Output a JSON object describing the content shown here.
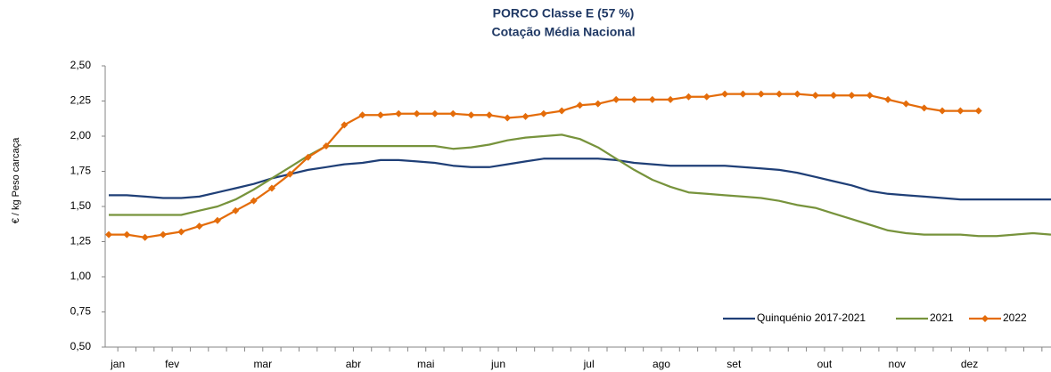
{
  "chart_data": {
    "type": "line",
    "title": "PORCO Classe E (57 %)",
    "subtitle": "Cotação Média Nacional",
    "y_label": "€ / kg Peso carcaça",
    "categories": [
      "jan",
      null,
      null,
      "fev",
      null,
      null,
      null,
      null,
      "mar",
      null,
      null,
      null,
      null,
      "abr",
      null,
      null,
      null,
      "mai",
      null,
      null,
      null,
      "jun",
      null,
      null,
      null,
      null,
      "jul",
      null,
      null,
      null,
      "ago",
      null,
      null,
      null,
      "set",
      null,
      null,
      null,
      null,
      "out",
      null,
      null,
      null,
      "nov",
      null,
      null,
      null,
      "dez",
      null,
      null,
      null,
      null,
      null
    ],
    "series": [
      {
        "name": "Quinquénio 2017-2021",
        "color": "#1f3f77",
        "marker": false,
        "values": [
          1.58,
          1.58,
          1.57,
          1.56,
          1.56,
          1.57,
          1.6,
          1.63,
          1.66,
          1.7,
          1.73,
          1.76,
          1.78,
          1.8,
          1.81,
          1.83,
          1.83,
          1.82,
          1.81,
          1.79,
          1.78,
          1.78,
          1.8,
          1.82,
          1.84,
          1.84,
          1.84,
          1.84,
          1.83,
          1.81,
          1.8,
          1.79,
          1.79,
          1.79,
          1.79,
          1.78,
          1.77,
          1.76,
          1.74,
          1.71,
          1.68,
          1.65,
          1.61,
          1.59,
          1.58,
          1.57,
          1.56,
          1.55,
          1.55,
          1.55,
          1.55,
          1.55,
          1.55
        ]
      },
      {
        "name": "2021",
        "color": "#77933c",
        "marker": false,
        "values": [
          1.44,
          1.44,
          1.44,
          1.44,
          1.44,
          1.47,
          1.5,
          1.55,
          1.62,
          1.7,
          1.78,
          1.86,
          1.93,
          1.93,
          1.93,
          1.93,
          1.93,
          1.93,
          1.93,
          1.91,
          1.92,
          1.94,
          1.97,
          1.99,
          2.0,
          2.01,
          1.98,
          1.92,
          1.84,
          1.76,
          1.69,
          1.64,
          1.6,
          1.59,
          1.58,
          1.57,
          1.56,
          1.54,
          1.51,
          1.49,
          1.45,
          1.41,
          1.37,
          1.33,
          1.31,
          1.3,
          1.3,
          1.3,
          1.29,
          1.29,
          1.3,
          1.31,
          1.3
        ]
      },
      {
        "name": "2022",
        "color": "#e46c0a",
        "marker": true,
        "values": [
          1.3,
          1.3,
          1.28,
          1.3,
          1.32,
          1.36,
          1.4,
          1.47,
          1.54,
          1.63,
          1.73,
          1.85,
          1.93,
          2.08,
          2.15,
          2.15,
          2.16,
          2.16,
          2.16,
          2.16,
          2.15,
          2.15,
          2.13,
          2.14,
          2.16,
          2.18,
          2.22,
          2.23,
          2.26,
          2.26,
          2.26,
          2.26,
          2.28,
          2.28,
          2.3,
          2.3,
          2.3,
          2.3,
          2.3,
          2.29,
          2.29,
          2.29,
          2.29,
          2.26,
          2.23,
          2.2,
          2.18,
          2.18,
          2.18,
          null,
          null,
          null,
          null
        ]
      }
    ],
    "ylim": [
      0.5,
      2.5
    ],
    "yticks": [
      {
        "value": 0.5,
        "label": "0,50"
      },
      {
        "value": 0.75,
        "label": "0,75"
      },
      {
        "value": 1.0,
        "label": "1,00"
      },
      {
        "value": 1.25,
        "label": "1,25"
      },
      {
        "value": 1.5,
        "label": "1,50"
      },
      {
        "value": 1.75,
        "label": "1,75"
      },
      {
        "value": 2.0,
        "label": "2,00"
      },
      {
        "value": 2.25,
        "label": "2,25"
      },
      {
        "value": 2.5,
        "label": "2,50"
      }
    ],
    "grid": false,
    "legend": "bottom-right"
  }
}
